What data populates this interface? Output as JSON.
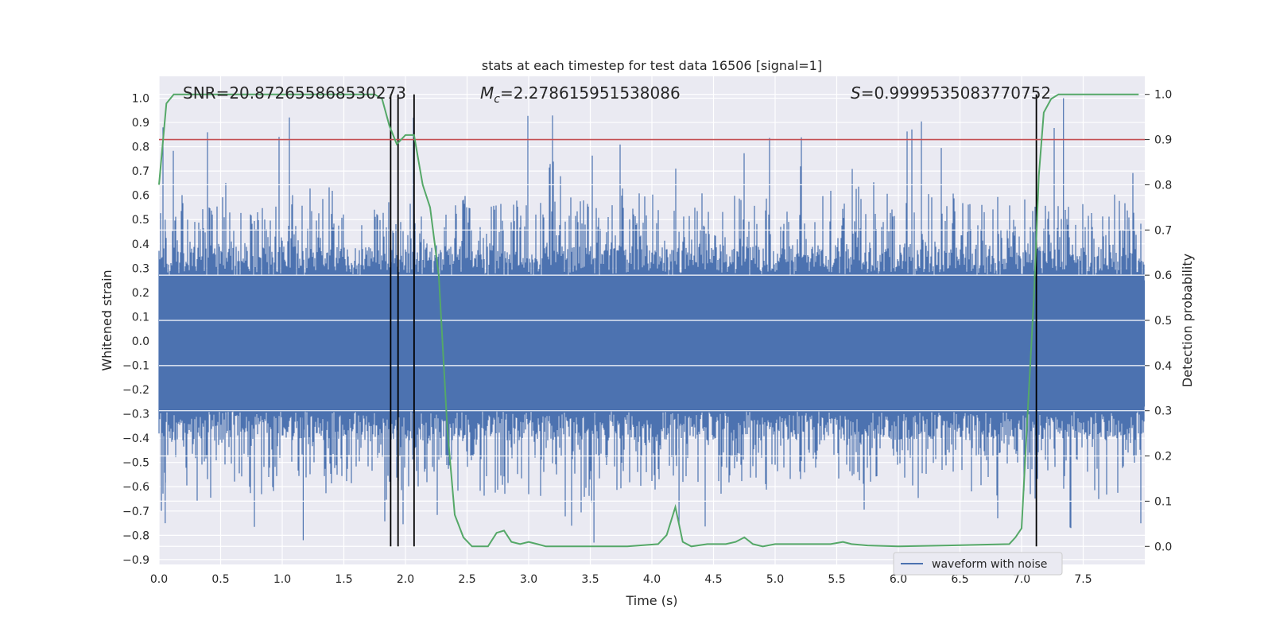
{
  "chart_data": {
    "type": "line",
    "title": "stats at each timestep for test data 16506 [signal=1]",
    "xlabel": "Time (s)",
    "ylabel_left": "Whitened strain",
    "ylabel_right": "Detection probability",
    "xlim": [
      0.0,
      8.0
    ],
    "ylim_left": [
      -0.92,
      1.09
    ],
    "ylim_right": [
      -0.04,
      1.04
    ],
    "xticks": [
      "0.0",
      "0.5",
      "1.0",
      "1.5",
      "2.0",
      "2.5",
      "3.0",
      "3.5",
      "4.0",
      "4.5",
      "5.0",
      "5.5",
      "6.0",
      "6.5",
      "7.0",
      "7.5"
    ],
    "yticks_left": [
      "-0.9",
      "-0.8",
      "-0.7",
      "-0.6",
      "-0.5",
      "-0.4",
      "-0.3",
      "-0.2",
      "-0.1",
      "0.0",
      "0.1",
      "0.2",
      "0.3",
      "0.4",
      "0.5",
      "0.6",
      "0.7",
      "0.8",
      "0.9",
      "1.0"
    ],
    "yticks_right": [
      "0.0",
      "0.1",
      "0.2",
      "0.3",
      "0.4",
      "0.5",
      "0.6",
      "0.7",
      "0.8",
      "0.9",
      "1.0"
    ],
    "grid": true,
    "background": "#eaeaf2",
    "annotations": {
      "snr_label": "SNR",
      "snr_value": "=20.872655868530273",
      "mc_symbol": "M",
      "mc_subscript": "c",
      "mc_value": "=2.278615951538086",
      "s_symbol": "S",
      "s_value": "=0.9999535083770752"
    },
    "threshold": {
      "value": 0.9,
      "axis": "right",
      "color": "#c44e52"
    },
    "vertical_markers": [
      1.88,
      1.94,
      2.07,
      7.12
    ],
    "series": [
      {
        "name": "waveform with noise",
        "axis": "left",
        "color": "#4c72b0",
        "kind": "noise",
        "envelope_core": [
          -0.29,
          0.27
        ],
        "spike_range": [
          -0.83,
          1.0
        ]
      },
      {
        "axis": "right",
        "color": "#55a868",
        "kind": "line",
        "x": [
          0.0,
          0.06,
          0.12,
          0.3,
          0.5,
          0.8,
          1.1,
          1.4,
          1.6,
          1.75,
          1.81,
          1.87,
          1.93,
          2.0,
          2.07,
          2.14,
          2.2,
          2.27,
          2.34,
          2.4,
          2.47,
          2.54,
          2.6,
          2.67,
          2.74,
          2.8,
          2.86,
          2.93,
          3.0,
          3.07,
          3.14,
          3.3,
          3.5,
          3.8,
          4.05,
          4.12,
          4.19,
          4.25,
          4.32,
          4.45,
          4.6,
          4.68,
          4.75,
          4.82,
          4.9,
          5.0,
          5.2,
          5.45,
          5.55,
          5.62,
          5.75,
          6.0,
          6.4,
          6.9,
          6.95,
          7.0,
          7.05,
          7.1,
          7.14,
          7.18,
          7.24,
          7.3,
          7.36,
          7.5,
          7.95
        ],
        "y": [
          0.8,
          0.98,
          1.0,
          1.0,
          1.0,
          1.0,
          1.0,
          1.0,
          1.0,
          1.0,
          0.99,
          0.93,
          0.89,
          0.91,
          0.91,
          0.8,
          0.75,
          0.6,
          0.26,
          0.07,
          0.02,
          0.0,
          0.0,
          0.0,
          0.03,
          0.035,
          0.01,
          0.005,
          0.01,
          0.005,
          0.0,
          0.0,
          0.0,
          0.0,
          0.005,
          0.025,
          0.087,
          0.01,
          0.0,
          0.005,
          0.005,
          0.01,
          0.02,
          0.005,
          0.0,
          0.005,
          0.005,
          0.005,
          0.01,
          0.005,
          0.002,
          0.0,
          0.002,
          0.005,
          0.02,
          0.04,
          0.3,
          0.55,
          0.82,
          0.96,
          0.99,
          1.0,
          1.0,
          1.0,
          1.0
        ]
      }
    ]
  }
}
